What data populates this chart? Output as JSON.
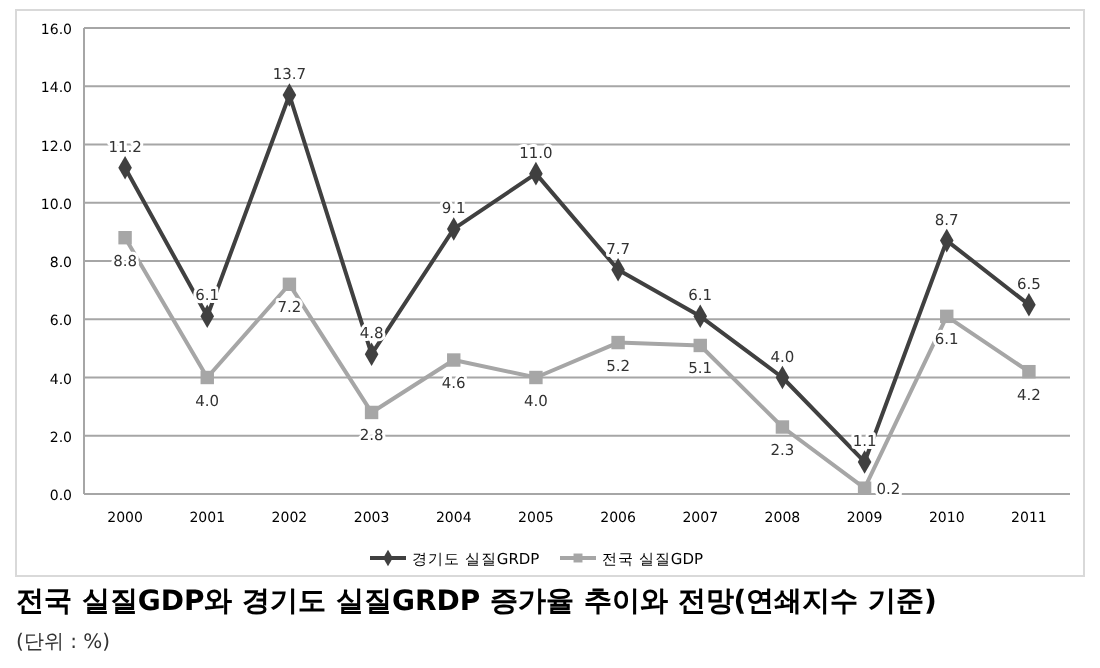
{
  "chart_data": {
    "type": "line",
    "title": "전국 실질GDP와 경기도 실질GRDP 증가율 추이와 전망(연쇄지수 기준)",
    "subtitle": "(단위 : %)",
    "categories": [
      "2000",
      "2001",
      "2002",
      "2003",
      "2004",
      "2005",
      "2006",
      "2007",
      "2008",
      "2009",
      "2010",
      "2011"
    ],
    "series": [
      {
        "name": "경기도 실질GRDP",
        "color": "#404040",
        "marker": "diamond",
        "values": [
          11.2,
          6.1,
          13.7,
          4.8,
          9.1,
          11.0,
          7.7,
          6.1,
          4.0,
          1.1,
          8.7,
          6.5
        ],
        "value_labels": [
          "11.2",
          "6.1",
          "13.7",
          "4.8",
          "9.1",
          "11.0",
          "7.7",
          "6.1",
          "4.0",
          "1.1",
          "8.7",
          "6.5"
        ]
      },
      {
        "name": "전국 실질GDP",
        "color": "#a6a6a6",
        "marker": "square",
        "values": [
          8.8,
          4.0,
          7.2,
          2.8,
          4.6,
          4.0,
          5.2,
          5.1,
          2.3,
          0.2,
          6.1,
          4.2
        ],
        "value_labels": [
          "8.8",
          "4.0",
          "7.2",
          "2.8",
          "4.6",
          "4.0",
          "5.2",
          "5.1",
          "2.3",
          "0.2",
          "6.1",
          "4.2"
        ]
      }
    ],
    "ylim": [
      0,
      16
    ],
    "yticks": [
      {
        "value": 0,
        "label": "0.0"
      },
      {
        "value": 2,
        "label": "2.0"
      },
      {
        "value": 4,
        "label": "4.0"
      },
      {
        "value": 6,
        "label": "6.0"
      },
      {
        "value": 8,
        "label": "8.0"
      },
      {
        "value": 10,
        "label": "10.0"
      },
      {
        "value": 12,
        "label": "12.0"
      },
      {
        "value": 14,
        "label": "14.0"
      },
      {
        "value": 16,
        "label": "16.0"
      }
    ],
    "grid": "y",
    "legend": "bottom",
    "line_style": "solid"
  }
}
